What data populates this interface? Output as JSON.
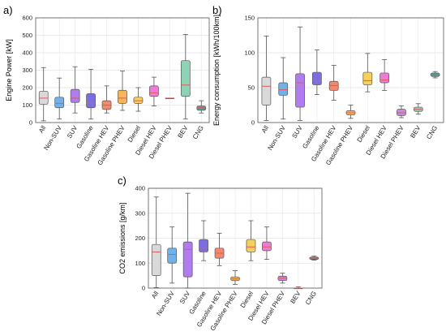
{
  "chart_data": [
    {
      "type": "boxplot",
      "panel": "a)",
      "ylabel": "Engine Power [kW]",
      "ylim": [
        0,
        600
      ],
      "yticks": [
        0,
        100,
        200,
        300,
        400,
        500,
        600
      ],
      "grid": true,
      "categories": [
        "All",
        "Non-SUV",
        "SUV",
        "Gasoline",
        "Gasoline HEV",
        "Gasoline PHEV",
        "Diesel",
        "Diesel HEV",
        "Diesel PHEV",
        "BEV",
        "CNG"
      ],
      "colors": [
        "#d9d9d9",
        "#6fb1e8",
        "#b07cf0",
        "#7b6fe0",
        "#f08a6e",
        "#f7b55a",
        "#f5d05a",
        "#f07ad8",
        "#c38ae8",
        "#8fd3b6",
        "#4f9f97"
      ],
      "boxes": [
        {
          "min": 10,
          "q1": 105,
          "median": 140,
          "q3": 180,
          "max": 315
        },
        {
          "min": 20,
          "q1": 85,
          "median": 110,
          "q3": 145,
          "max": 255
        },
        {
          "min": 55,
          "q1": 115,
          "median": 140,
          "q3": 190,
          "max": 320
        },
        {
          "min": 20,
          "q1": 85,
          "median": 110,
          "q3": 165,
          "max": 305
        },
        {
          "min": 55,
          "q1": 75,
          "median": 100,
          "q3": 125,
          "max": 210
        },
        {
          "min": 70,
          "q1": 110,
          "median": 140,
          "q3": 185,
          "max": 295
        },
        {
          "min": 65,
          "q1": 110,
          "median": 125,
          "q3": 145,
          "max": 200
        },
        {
          "min": 95,
          "q1": 150,
          "median": 170,
          "q3": 210,
          "max": 260
        },
        {
          "min": 140,
          "q1": 140,
          "median": 140,
          "q3": 140,
          "max": 140
        },
        {
          "min": 20,
          "q1": 150,
          "median": 215,
          "q3": 355,
          "max": 505
        },
        {
          "min": 55,
          "q1": 70,
          "median": 85,
          "q3": 95,
          "max": 125
        }
      ]
    },
    {
      "type": "boxplot",
      "panel": "b)",
      "ylabel": "Energy consumption [kWh/100km]",
      "ylim": [
        0,
        150
      ],
      "yticks": [
        0,
        50,
        100,
        150
      ],
      "grid": true,
      "categories": [
        "All",
        "Non-SUV",
        "SUV",
        "Gasoline",
        "Gasoline HEV",
        "Gasoline PHEV",
        "Diesel",
        "Diesel HEV",
        "Diesel PHEV",
        "BEV",
        "CNG"
      ],
      "colors": [
        "#d9d9d9",
        "#6fb1e8",
        "#b07cf0",
        "#7b6fe0",
        "#f08a6e",
        "#f7b55a",
        "#f5d05a",
        "#f07ad8",
        "#c38ae8",
        "#8fd3b6",
        "#4f9f97"
      ],
      "boxes": [
        {
          "min": 3,
          "q1": 25,
          "median": 52,
          "q3": 65,
          "max": 124
        },
        {
          "min": 5,
          "q1": 39,
          "median": 47,
          "q3": 57,
          "max": 93
        },
        {
          "min": 3,
          "q1": 22,
          "median": 57,
          "q3": 70,
          "max": 137
        },
        {
          "min": 40,
          "q1": 54,
          "median": 60,
          "q3": 72,
          "max": 104
        },
        {
          "min": 32,
          "q1": 46,
          "median": 53,
          "q3": 59,
          "max": 82
        },
        {
          "min": 6,
          "q1": 11,
          "median": 14,
          "q3": 17,
          "max": 25
        },
        {
          "min": 44,
          "q1": 54,
          "median": 60,
          "q3": 72,
          "max": 99
        },
        {
          "min": 46,
          "q1": 57,
          "median": 61,
          "q3": 71,
          "max": 90
        },
        {
          "min": 7,
          "q1": 10,
          "median": 14,
          "q3": 19,
          "max": 24
        },
        {
          "min": 12,
          "q1": 16,
          "median": 19,
          "q3": 22,
          "max": 27
        },
        {
          "min": 64,
          "q1": 66,
          "median": 69,
          "q3": 71,
          "max": 73
        }
      ]
    },
    {
      "type": "boxplot",
      "panel": "c)",
      "ylabel": "CO2 emissions [g/km]",
      "ylim": [
        0,
        400
      ],
      "yticks": [
        0,
        100,
        200,
        300,
        400
      ],
      "grid": true,
      "categories": [
        "All",
        "Non-SUV",
        "SUV",
        "Gasoline",
        "Gasoline HEV",
        "Gasoline PHEV",
        "Diesel",
        "Diesel HEV",
        "Diesel PHEV",
        "BEV",
        "CNG"
      ],
      "colors": [
        "#d9d9d9",
        "#6fb1e8",
        "#b07cf0",
        "#7b6fe0",
        "#f08a6e",
        "#f7b55a",
        "#f5d05a",
        "#f07ad8",
        "#c38ae8",
        "#8fd3b6",
        "#4f9f97"
      ],
      "boxes": [
        {
          "min": 2,
          "q1": 50,
          "median": 145,
          "q3": 175,
          "max": 365
        },
        {
          "min": 20,
          "q1": 100,
          "median": 135,
          "q3": 160,
          "max": 245
        },
        {
          "min": 0,
          "q1": 45,
          "median": 155,
          "q3": 185,
          "max": 380
        },
        {
          "min": 110,
          "q1": 145,
          "median": 160,
          "q3": 195,
          "max": 270
        },
        {
          "min": 90,
          "q1": 120,
          "median": 140,
          "q3": 160,
          "max": 220
        },
        {
          "min": 15,
          "q1": 30,
          "median": 37,
          "q3": 45,
          "max": 70
        },
        {
          "min": 110,
          "q1": 145,
          "median": 165,
          "q3": 195,
          "max": 270
        },
        {
          "min": 115,
          "q1": 150,
          "median": 165,
          "q3": 185,
          "max": 245
        },
        {
          "min": 20,
          "q1": 30,
          "median": 40,
          "q3": 48,
          "max": 60
        },
        {
          "min": 0,
          "q1": 0,
          "median": 0,
          "q3": 0,
          "max": 5
        },
        {
          "min": 112,
          "q1": 115,
          "median": 120,
          "q3": 124,
          "max": 128
        }
      ]
    }
  ]
}
